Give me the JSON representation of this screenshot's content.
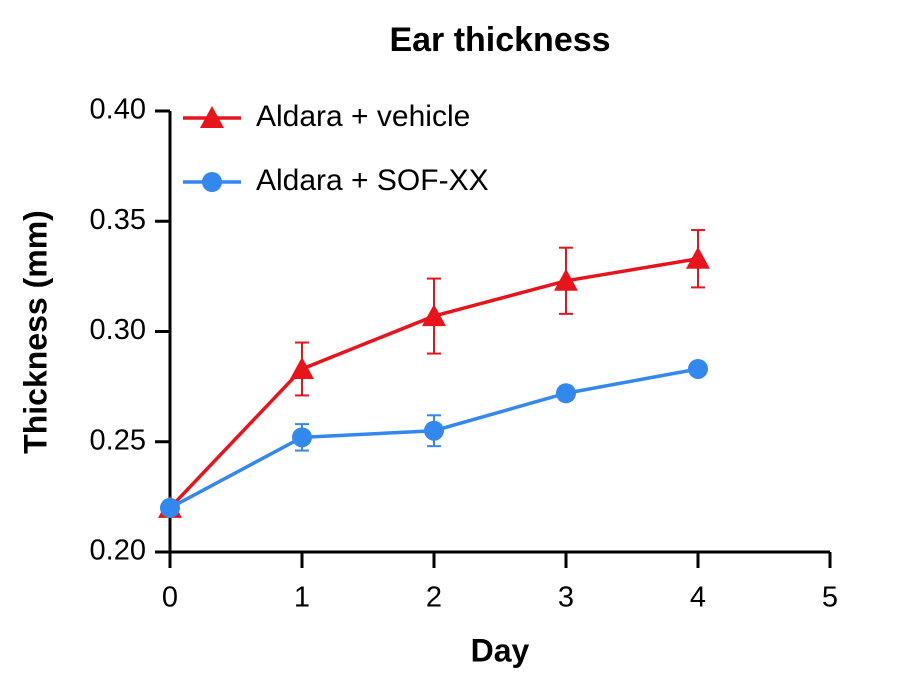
{
  "chart_data": {
    "type": "line",
    "title": "Ear thickness",
    "x_label": "Day",
    "y_label": "Thickness (mm)",
    "x": [
      0,
      1,
      2,
      3,
      4
    ],
    "series": [
      {
        "name": "Aldara + vehicle",
        "color": "#e8131b",
        "marker": "triangle",
        "values": [
          0.22,
          0.283,
          0.307,
          0.323,
          0.333
        ],
        "errors": [
          0,
          0.012,
          0.017,
          0.015,
          0.013
        ]
      },
      {
        "name": "Aldara + SOF-XX",
        "color": "#3388ee",
        "marker": "circle",
        "values": [
          0.22,
          0.252,
          0.255,
          0.272,
          0.283
        ],
        "errors": [
          0,
          0.006,
          0.007,
          0.003,
          0.002
        ]
      }
    ],
    "xlim": [
      0,
      5
    ],
    "xticks": [
      0,
      1,
      2,
      3,
      4,
      5
    ],
    "ylim": [
      0.2,
      0.4
    ],
    "yticks": [
      {
        "value": 0.2,
        "label": "0.20"
      },
      0.25,
      {
        "value": 0.3,
        "label": "0.30"
      },
      0.35,
      {
        "value": 0.4,
        "label": "0.40"
      }
    ],
    "legend": "top-left",
    "grid": false
  }
}
